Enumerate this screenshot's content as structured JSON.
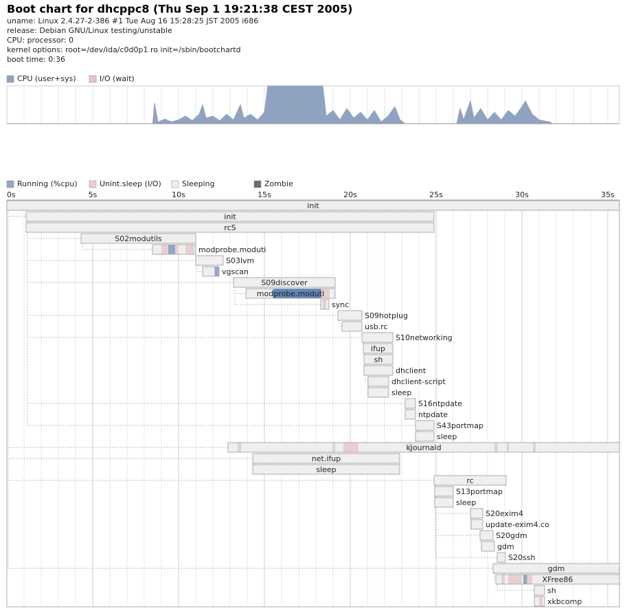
{
  "header": {
    "title": "Boot chart for dhcppc8 (Thu Sep  1 19:21:38 CEST 2005)",
    "lines": [
      "uname: Linux 2.4.27-2-386 #1 Tue Aug 16 15:28:25 JST 2005 i686",
      "release: Debian GNU/Linux testing/unstable",
      "CPU: processor: 0",
      "kernel options: root=/dev/ida/c0d0p1 ro init=/sbin/bootchartd",
      "boot time: 0:36"
    ]
  },
  "chart_data": [
    {
      "type": "area",
      "legend": [
        {
          "name": "CPU (user+sys)",
          "color": "#8fa3c1"
        },
        {
          "name": "I/O (wait)",
          "color": "#e6c3c4"
        }
      ],
      "xlim": [
        0,
        35.68
      ],
      "ylim": [
        0,
        100
      ],
      "xgrid": [
        1,
        2,
        3,
        4,
        5,
        6,
        7,
        8,
        9,
        10,
        11,
        12,
        13,
        14,
        15,
        16,
        17,
        18,
        19,
        20,
        21,
        22,
        23,
        24,
        25,
        26,
        27,
        28,
        29,
        30,
        31,
        32,
        33,
        34,
        35
      ],
      "series": [
        {
          "name": "CPU (user+sys)",
          "color": "#8fa3c1",
          "x": [
            0,
            8.5,
            8.6,
            8.8,
            9.2,
            9.6,
            10,
            10.4,
            10.8,
            11.2,
            11.4,
            11.6,
            12,
            12.4,
            12.8,
            13.2,
            13.6,
            13.8,
            14.2,
            14.6,
            15,
            15.2,
            18.4,
            18.6,
            19,
            19.4,
            19.8,
            20.2,
            20.6,
            21,
            21.4,
            21.8,
            22.2,
            22.6,
            22.9,
            23.2,
            26.2,
            26.4,
            26.6,
            27,
            27.2,
            27.6,
            28,
            28.4,
            28.8,
            29.2,
            29.6,
            30,
            30.2,
            30.6,
            31,
            31.6,
            31.8,
            35.68
          ],
          "values": [
            0,
            0,
            55,
            5,
            12,
            5,
            10,
            20,
            8,
            25,
            50,
            15,
            20,
            8,
            25,
            10,
            50,
            15,
            25,
            10,
            30,
            100,
            100,
            20,
            35,
            10,
            40,
            15,
            30,
            10,
            35,
            5,
            20,
            45,
            10,
            0,
            0,
            40,
            10,
            60,
            15,
            40,
            10,
            30,
            10,
            35,
            20,
            45,
            60,
            25,
            10,
            5,
            0,
            0
          ]
        }
      ]
    },
    {
      "type": "gantt",
      "legend": [
        {
          "name": "Running (%cpu)",
          "color": "#94a7c4"
        },
        {
          "name": "Unint.sleep (I/O)",
          "color": "#e8cfd0"
        },
        {
          "name": "Sleeping",
          "color": "#efefef"
        },
        {
          "name": "Zombie",
          "color": "#6e6e6e"
        }
      ],
      "xlim": [
        0,
        35.68
      ],
      "xticks": [
        {
          "value": 0,
          "label": "0s"
        },
        {
          "value": 5,
          "label": "5s"
        },
        {
          "value": 10,
          "label": "10s"
        },
        {
          "value": 15,
          "label": "15s"
        },
        {
          "value": 20,
          "label": "20s"
        },
        {
          "value": 25,
          "label": "25s"
        },
        {
          "value": 30,
          "label": "30s"
        },
        {
          "value": 35,
          "label": "35s"
        }
      ],
      "xgrid": [
        1,
        2,
        3,
        4,
        5,
        6,
        7,
        8,
        9,
        10,
        11,
        12,
        13,
        14,
        15,
        16,
        17,
        18,
        19,
        20,
        21,
        22,
        23,
        24,
        25,
        26,
        27,
        28,
        29,
        30,
        31,
        32,
        33,
        34,
        35
      ],
      "processes": [
        {
          "name": "init",
          "start": 0,
          "end": 35.68
        },
        {
          "name": "init",
          "start": 1.12,
          "end": 24.88,
          "parent": 0
        },
        {
          "name": "rcS",
          "start": 1.12,
          "end": 24.88,
          "parent": 1
        },
        {
          "name": "S02modutils",
          "start": 4.32,
          "end": 11.0,
          "parent": 2
        },
        {
          "name": "modprobe.moduti",
          "start": 8.48,
          "end": 11.0,
          "parent": 3,
          "io": [
            [
              9.0,
              9.4
            ],
            [
              9.8,
              10.0
            ],
            [
              10.4,
              10.9
            ]
          ],
          "running": [
            [
              9.4,
              9.8
            ]
          ]
        },
        {
          "name": "S03lvm",
          "start": 11.0,
          "end": 12.6,
          "parent": 2
        },
        {
          "name": "vgscan",
          "start": 11.4,
          "end": 12.36,
          "parent": 5,
          "running": [
            [
              12.1,
              12.36
            ]
          ]
        },
        {
          "name": "S09discover",
          "start": 13.2,
          "end": 19.12,
          "parent": 2
        },
        {
          "name": "modprobe.moduti",
          "start": 13.92,
          "end": 19.12,
          "parent": 7,
          "running": [
            [
              15.5,
              18.3
            ]
          ],
          "io": [
            [
              18.3,
              18.8
            ]
          ]
        },
        {
          "name": "sync",
          "start": 18.28,
          "end": 18.76,
          "parent": 7,
          "io": [
            [
              18.4,
              18.6
            ]
          ]
        },
        {
          "name": "S09hotplug",
          "start": 19.28,
          "end": 20.68,
          "parent": 2
        },
        {
          "name": "usb.rc",
          "start": 19.52,
          "end": 20.68,
          "parent": 10
        },
        {
          "name": "S10networking",
          "start": 20.68,
          "end": 22.48,
          "parent": 2
        },
        {
          "name": "ifup",
          "start": 20.76,
          "end": 22.48,
          "parent": 12
        },
        {
          "name": "sh",
          "start": 20.8,
          "end": 22.48,
          "parent": 13
        },
        {
          "name": "dhclient",
          "start": 20.8,
          "end": 22.48,
          "parent": 14
        },
        {
          "name": "dhclient-script",
          "start": 21.04,
          "end": 22.24,
          "parent": 15
        },
        {
          "name": "sleep",
          "start": 21.04,
          "end": 22.24,
          "parent": 16
        },
        {
          "name": "S16ntpdate",
          "start": 23.2,
          "end": 23.8,
          "parent": 2
        },
        {
          "name": "ntpdate",
          "start": 23.2,
          "end": 23.8,
          "parent": 18
        },
        {
          "name": "S43portmap",
          "start": 23.8,
          "end": 24.88,
          "parent": 2
        },
        {
          "name": "sleep",
          "start": 23.8,
          "end": 24.88,
          "parent": 20
        },
        {
          "name": "kjournald",
          "start": 12.88,
          "end": 35.68,
          "parent": 0,
          "io": [
            [
              13.44,
              13.64
            ],
            [
              18.96,
              19.12
            ],
            [
              19.6,
              20.48
            ],
            [
              23.4,
              23.56
            ],
            [
              28.4,
              28.6
            ],
            [
              29.12,
              29.24
            ],
            [
              30.64,
              30.8
            ]
          ]
        },
        {
          "name": "net.ifup",
          "start": 14.32,
          "end": 22.88,
          "parent": 0
        },
        {
          "name": "sleep",
          "start": 14.32,
          "end": 22.88,
          "parent": 23
        },
        {
          "name": "rc",
          "start": 24.88,
          "end": 29.08,
          "parent": 0
        },
        {
          "name": "S13portmap",
          "start": 24.92,
          "end": 26.0,
          "parent": 25
        },
        {
          "name": "sleep",
          "start": 24.92,
          "end": 26.0,
          "parent": 26
        },
        {
          "name": "S20exim4",
          "start": 27.0,
          "end": 27.72,
          "parent": 25
        },
        {
          "name": "update-exim4.co",
          "start": 27.04,
          "end": 27.72,
          "parent": 28
        },
        {
          "name": "S20gdm",
          "start": 27.56,
          "end": 28.32,
          "parent": 25
        },
        {
          "name": "gdm",
          "start": 27.64,
          "end": 28.4,
          "parent": 30
        },
        {
          "name": "S20ssh",
          "start": 28.56,
          "end": 29.04,
          "parent": 25
        },
        {
          "name": "gdm",
          "start": 28.32,
          "end": 35.68,
          "parent": 0
        },
        {
          "name": "XFree86",
          "start": 28.48,
          "end": 35.68,
          "parent": 33,
          "io": [
            [
              28.8,
              29.0
            ],
            [
              29.2,
              30.0
            ],
            [
              30.3,
              30.6
            ]
          ],
          "running": [
            [
              30.08,
              30.3
            ]
          ]
        },
        {
          "name": "sh",
          "start": 30.72,
          "end": 31.32,
          "parent": 34
        },
        {
          "name": "xkbcomp",
          "start": 30.72,
          "end": 31.32,
          "parent": 35,
          "io": [
            [
              31.0,
              31.2
            ]
          ]
        }
      ]
    }
  ]
}
